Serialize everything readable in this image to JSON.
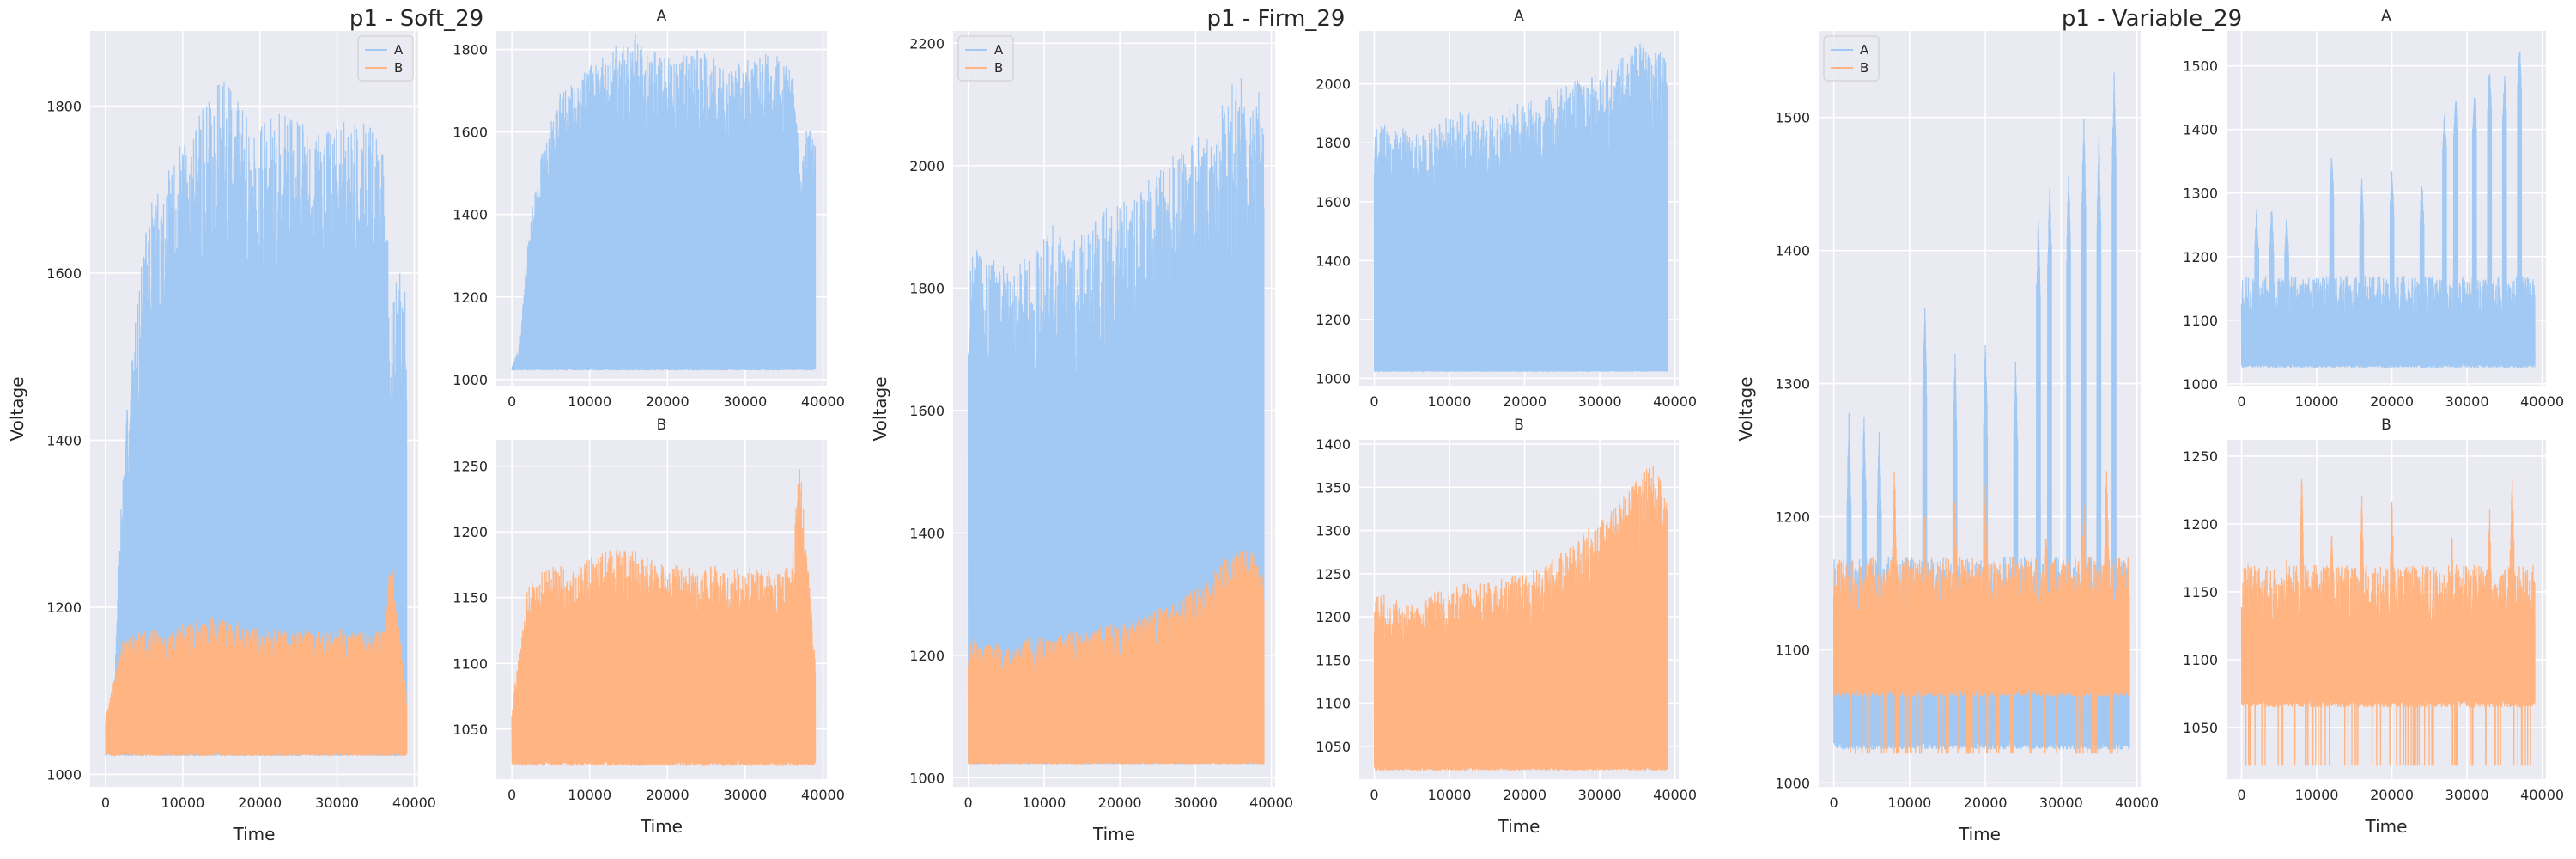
{
  "figure": {
    "background": "#ffffff",
    "panel_background": "#eaeaf2",
    "grid_color": "#ffffff"
  },
  "colors": {
    "A": "#a1c9f4",
    "B": "#ffb482"
  },
  "chart_data": [
    {
      "group": "Soft_29",
      "panel": "main",
      "type": "line",
      "title": "p1 - Soft_29",
      "xlabel": "Time",
      "ylabel": "Voltage",
      "xlim": [
        -2000,
        40500
      ],
      "ylim": [
        985,
        1890
      ],
      "xticks": [
        0,
        10000,
        20000,
        30000,
        40000
      ],
      "yticks": [
        1000,
        1200,
        1400,
        1600,
        1800
      ],
      "legend": {
        "position": "top-right",
        "entries": [
          "A",
          "B"
        ]
      },
      "series": [
        {
          "name": "A",
          "color": "#a1c9f4",
          "x": [
            0,
            1000,
            2000,
            3000,
            4000,
            5000,
            6000,
            8000,
            10000,
            12000,
            14000,
            16000,
            18000,
            20000,
            22000,
            24000,
            26000,
            28000,
            30000,
            32000,
            34000,
            36000,
            37000,
            38000,
            39000
          ],
          "min": 1022,
          "max": [
            1030,
            1080,
            1330,
            1470,
            1560,
            1640,
            1690,
            1720,
            1760,
            1790,
            1820,
            1840,
            1800,
            1780,
            1790,
            1800,
            1780,
            1770,
            1780,
            1790,
            1790,
            1760,
            1550,
            1620,
            1580
          ]
        },
        {
          "name": "B",
          "color": "#ffb482",
          "x": [
            0,
            1000,
            2000,
            4000,
            6000,
            8000,
            10000,
            12000,
            14000,
            16000,
            18000,
            20000,
            22000,
            24000,
            26000,
            28000,
            30000,
            32000,
            34000,
            36000,
            37000,
            38000,
            39000
          ],
          "min": 1022,
          "max": [
            1070,
            1110,
            1160,
            1170,
            1175,
            1170,
            1180,
            1185,
            1190,
            1185,
            1180,
            1175,
            1175,
            1170,
            1175,
            1170,
            1175,
            1175,
            1170,
            1175,
            1260,
            1180,
            1100
          ]
        }
      ]
    },
    {
      "group": "Soft_29",
      "panel": "A",
      "type": "line",
      "title": "A",
      "xlabel": "",
      "ylabel": "",
      "xlim": [
        -2000,
        40500
      ],
      "ylim": [
        985,
        1845
      ],
      "xticks": [
        0,
        10000,
        20000,
        30000,
        40000
      ],
      "yticks": [
        1000,
        1200,
        1400,
        1600,
        1800
      ],
      "series": [
        {
          "name": "A",
          "color": "#a1c9f4",
          "x": [
            0,
            1000,
            2000,
            3000,
            4000,
            5000,
            6000,
            8000,
            10000,
            12000,
            14000,
            16000,
            18000,
            20000,
            22000,
            24000,
            26000,
            28000,
            30000,
            32000,
            34000,
            36000,
            37000,
            38000,
            39000
          ],
          "min": 1022,
          "max": [
            1030,
            1080,
            1330,
            1470,
            1560,
            1640,
            1690,
            1720,
            1760,
            1790,
            1820,
            1840,
            1800,
            1780,
            1790,
            1800,
            1780,
            1770,
            1780,
            1790,
            1790,
            1760,
            1550,
            1620,
            1580
          ]
        }
      ]
    },
    {
      "group": "Soft_29",
      "panel": "B",
      "type": "line",
      "title": "B",
      "xlabel": "Time",
      "ylabel": "",
      "xlim": [
        -2000,
        40500
      ],
      "ylim": [
        1012,
        1270
      ],
      "xticks": [
        0,
        10000,
        20000,
        30000,
        40000
      ],
      "yticks": [
        1050,
        1100,
        1150,
        1200,
        1250
      ],
      "series": [
        {
          "name": "B",
          "color": "#ffb482",
          "x": [
            0,
            1000,
            2000,
            4000,
            6000,
            8000,
            10000,
            12000,
            14000,
            16000,
            18000,
            20000,
            22000,
            24000,
            26000,
            28000,
            30000,
            32000,
            34000,
            36000,
            37000,
            38000,
            39000
          ],
          "min": 1022,
          "max": [
            1070,
            1110,
            1160,
            1170,
            1175,
            1170,
            1180,
            1185,
            1190,
            1185,
            1180,
            1175,
            1175,
            1170,
            1175,
            1170,
            1175,
            1175,
            1170,
            1175,
            1260,
            1180,
            1100
          ]
        }
      ]
    },
    {
      "group": "Firm_29",
      "panel": "main",
      "type": "line",
      "title": "p1 - Firm_29",
      "xlabel": "Time",
      "ylabel": "Voltage",
      "xlim": [
        -2000,
        40500
      ],
      "ylim": [
        985,
        2220
      ],
      "xticks": [
        0,
        10000,
        20000,
        30000,
        40000
      ],
      "yticks": [
        1000,
        1200,
        1400,
        1600,
        1800,
        2000,
        2200
      ],
      "legend": {
        "position": "top-left",
        "entries": [
          "A",
          "B"
        ]
      },
      "series": [
        {
          "name": "A",
          "color": "#a1c9f4",
          "x": [
            0,
            1000,
            2000,
            4000,
            6000,
            8000,
            10000,
            12000,
            14000,
            16000,
            18000,
            20000,
            22000,
            24000,
            26000,
            28000,
            30000,
            32000,
            34000,
            36000,
            37000,
            38000,
            39000
          ],
          "min": 1022,
          "max": [
            1860,
            1880,
            1840,
            1850,
            1830,
            1860,
            1900,
            1910,
            1880,
            1900,
            1930,
            1940,
            1950,
            1980,
            2000,
            2030,
            2050,
            2070,
            2120,
            2150,
            2100,
            2130,
            2110
          ]
        },
        {
          "name": "B",
          "color": "#ffb482",
          "x": [
            0,
            1000,
            2000,
            4000,
            6000,
            8000,
            10000,
            12000,
            14000,
            16000,
            18000,
            20000,
            22000,
            24000,
            26000,
            28000,
            30000,
            32000,
            34000,
            36000,
            37000,
            38000,
            39000
          ],
          "min": 1022,
          "max": [
            1220,
            1230,
            1220,
            1220,
            1210,
            1230,
            1230,
            1240,
            1240,
            1240,
            1250,
            1250,
            1260,
            1270,
            1280,
            1300,
            1310,
            1330,
            1360,
            1370,
            1380,
            1360,
            1330
          ]
        }
      ]
    },
    {
      "group": "Firm_29",
      "panel": "A",
      "type": "line",
      "title": "A",
      "xlabel": "",
      "ylabel": "",
      "xlim": [
        -2000,
        40500
      ],
      "ylim": [
        975,
        2180
      ],
      "xticks": [
        0,
        10000,
        20000,
        30000,
        40000
      ],
      "yticks": [
        1000,
        1200,
        1400,
        1600,
        1800,
        2000
      ],
      "series": [
        {
          "name": "A",
          "color": "#a1c9f4",
          "x": [
            0,
            1000,
            2000,
            4000,
            6000,
            8000,
            10000,
            12000,
            14000,
            16000,
            18000,
            20000,
            22000,
            24000,
            26000,
            28000,
            30000,
            32000,
            34000,
            36000,
            37000,
            38000,
            39000
          ],
          "min": 1022,
          "max": [
            1860,
            1880,
            1840,
            1850,
            1830,
            1860,
            1900,
            1910,
            1880,
            1900,
            1930,
            1940,
            1950,
            1980,
            2000,
            2030,
            2050,
            2070,
            2120,
            2150,
            2100,
            2130,
            2110
          ]
        }
      ]
    },
    {
      "group": "Firm_29",
      "panel": "B",
      "type": "line",
      "title": "B",
      "xlabel": "Time",
      "ylabel": "",
      "xlim": [
        -2000,
        40500
      ],
      "ylim": [
        1012,
        1405
      ],
      "xticks": [
        0,
        10000,
        20000,
        30000,
        40000
      ],
      "yticks": [
        1050,
        1100,
        1150,
        1200,
        1250,
        1300,
        1350,
        1400
      ],
      "series": [
        {
          "name": "B",
          "color": "#ffb482",
          "x": [
            0,
            1000,
            2000,
            4000,
            6000,
            8000,
            10000,
            12000,
            14000,
            16000,
            18000,
            20000,
            22000,
            24000,
            26000,
            28000,
            30000,
            32000,
            34000,
            36000,
            37000,
            38000,
            39000
          ],
          "min": 1022,
          "max": [
            1220,
            1230,
            1220,
            1220,
            1210,
            1230,
            1230,
            1240,
            1240,
            1240,
            1250,
            1250,
            1260,
            1270,
            1280,
            1300,
            1310,
            1330,
            1360,
            1370,
            1380,
            1360,
            1330
          ]
        }
      ]
    },
    {
      "group": "Variable_29",
      "panel": "main",
      "type": "line",
      "title": "p1 - Variable_29",
      "xlabel": "Time",
      "ylabel": "Voltage",
      "xlim": [
        -2000,
        40500
      ],
      "ylim": [
        997,
        1565
      ],
      "xticks": [
        0,
        10000,
        20000,
        30000,
        40000
      ],
      "yticks": [
        1000,
        1100,
        1200,
        1300,
        1400,
        1500
      ],
      "legend": {
        "position": "top-left",
        "entries": [
          "A",
          "B"
        ]
      },
      "series": [
        {
          "name": "A",
          "color": "#a1c9f4",
          "spikes": [
            [
              2000,
              1280
            ],
            [
              4000,
              1285
            ],
            [
              6000,
              1275
            ],
            [
              12000,
              1365
            ],
            [
              16000,
              1325
            ],
            [
              20000,
              1340
            ],
            [
              24000,
              1325
            ],
            [
              27000,
              1435
            ],
            [
              28500,
              1460
            ],
            [
              31000,
              1465
            ],
            [
              33000,
              1505
            ],
            [
              35000,
              1490
            ],
            [
              37000,
              1535
            ]
          ],
          "base": 1025,
          "band_max": 1170
        },
        {
          "name": "B",
          "color": "#ffb482",
          "spikes": [
            [
              6000,
              1180
            ],
            [
              8000,
              1240
            ],
            [
              12000,
              1205
            ],
            [
              16000,
              1225
            ],
            [
              20000,
              1225
            ],
            [
              28000,
              1195
            ],
            [
              33000,
              1215
            ],
            [
              36000,
              1245
            ]
          ],
          "base": 1065,
          "band_max": 1170,
          "min": 1022
        }
      ]
    },
    {
      "group": "Variable_29",
      "panel": "A",
      "type": "line",
      "title": "A",
      "xlabel": "",
      "ylabel": "",
      "xlim": [
        -2000,
        40500
      ],
      "ylim": [
        997,
        1555
      ],
      "xticks": [
        0,
        10000,
        20000,
        30000,
        40000
      ],
      "yticks": [
        1000,
        1100,
        1200,
        1300,
        1400,
        1500
      ],
      "series": [
        {
          "name": "A",
          "color": "#a1c9f4",
          "spikes": [
            [
              2000,
              1280
            ],
            [
              4000,
              1285
            ],
            [
              6000,
              1275
            ],
            [
              12000,
              1365
            ],
            [
              16000,
              1325
            ],
            [
              20000,
              1340
            ],
            [
              24000,
              1325
            ],
            [
              27000,
              1435
            ],
            [
              28500,
              1460
            ],
            [
              31000,
              1465
            ],
            [
              33000,
              1505
            ],
            [
              35000,
              1490
            ],
            [
              37000,
              1535
            ]
          ],
          "base": 1025,
          "band_max": 1170
        }
      ]
    },
    {
      "group": "Variable_29",
      "panel": "B",
      "type": "line",
      "title": "B",
      "xlabel": "Time",
      "ylabel": "",
      "xlim": [
        -2000,
        40500
      ],
      "ylim": [
        1012,
        1262
      ],
      "xticks": [
        0,
        10000,
        20000,
        30000,
        40000
      ],
      "yticks": [
        1050,
        1100,
        1150,
        1200,
        1250
      ],
      "series": [
        {
          "name": "B",
          "color": "#ffb482",
          "spikes": [
            [
              6000,
              1180
            ],
            [
              8000,
              1240
            ],
            [
              12000,
              1205
            ],
            [
              16000,
              1225
            ],
            [
              20000,
              1225
            ],
            [
              28000,
              1195
            ],
            [
              33000,
              1215
            ],
            [
              36000,
              1245
            ]
          ],
          "base": 1065,
          "band_max": 1170,
          "min": 1022
        }
      ]
    }
  ]
}
